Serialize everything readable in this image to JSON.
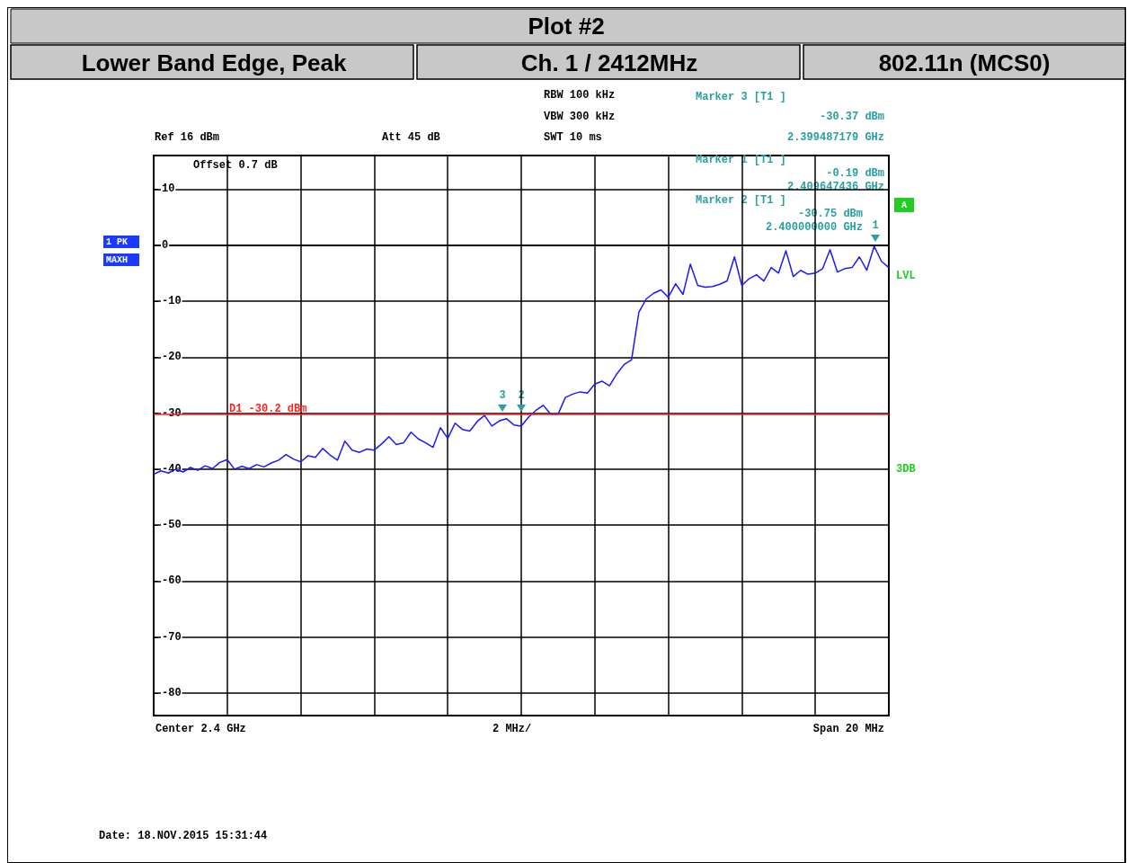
{
  "chart_data": {
    "type": "line",
    "title": "Plot #2",
    "categories": [
      null,
      null,
      null,
      null,
      null,
      null,
      null,
      null,
      null,
      null,
      null,
      null,
      null,
      null,
      null,
      null,
      null,
      null,
      null,
      null,
      null,
      null,
      null,
      null,
      null,
      null,
      null,
      null,
      null,
      null,
      null,
      null,
      null,
      null,
      null,
      null,
      null,
      null,
      null,
      null,
      null,
      null,
      null,
      null,
      null,
      null,
      null,
      null,
      null,
      null,
      null,
      null,
      null,
      null,
      null,
      null,
      null,
      null,
      null,
      null,
      null,
      null,
      null,
      null,
      null,
      null,
      null,
      null,
      null,
      null,
      null,
      null,
      null,
      null,
      null,
      null,
      null,
      null,
      null,
      null,
      null,
      null,
      null,
      null,
      null,
      null,
      null,
      null,
      null,
      null,
      null,
      null,
      null,
      null,
      null,
      null,
      null,
      null,
      null,
      null,
      null
    ],
    "values": [
      -40.9,
      -40.3,
      -40.7,
      -40.0,
      -40.5,
      -39.7,
      -40.2,
      -39.4,
      -39.9,
      -38.8,
      -38.3,
      -40.0,
      -39.5,
      -39.9,
      -39.2,
      -39.6,
      -38.9,
      -38.4,
      -37.4,
      -38.2,
      -38.7,
      -37.6,
      -37.9,
      -36.3,
      -37.5,
      -38.4,
      -35.0,
      -36.6,
      -37.0,
      -36.4,
      -36.6,
      -35.5,
      -34.2,
      -35.6,
      -35.3,
      -33.4,
      -34.6,
      -35.3,
      -36.1,
      -32.6,
      -34.5,
      -31.8,
      -32.9,
      -33.2,
      -31.5,
      -30.4,
      -32.3,
      -31.4,
      -31.0,
      -32.1,
      -32.3,
      -30.7,
      -29.5,
      -28.6,
      -30.2,
      -30.2,
      -27.2,
      -26.6,
      -26.2,
      -26.4,
      -24.8,
      -24.3,
      -25.1,
      -23.0,
      -21.3,
      -20.5,
      -12.0,
      -9.6,
      -8.6,
      -8.0,
      -9.3,
      -6.9,
      -8.8,
      -3.4,
      -7.2,
      -7.5,
      -7.4,
      -7.0,
      -6.4,
      -2.1,
      -7.2,
      -6.0,
      -5.3,
      -6.4,
      -4.0,
      -5.0,
      -1.0,
      -5.6,
      -4.5,
      -5.2,
      -5.0,
      -4.2,
      -0.8,
      -4.8,
      -4.2,
      -4.0,
      -2.1,
      -4.5,
      -0.2,
      -2.9,
      -4.0
    ],
    "color": "#1a1aff",
    "line_style": "solid",
    "ylim": [
      -84,
      16
    ],
    "yticks": [
      10,
      0,
      -10,
      -20,
      -30,
      -40,
      -50,
      -60,
      -70,
      -80
    ],
    "tick_labels": "y",
    "grid": true,
    "ref_lines": [
      {
        "axis": "y",
        "value": -30.2,
        "label": "D1 -30.2 dBm",
        "color": "#ff2020"
      }
    ],
    "annotations": [
      "Lower Band Edge, Peak",
      "Ch. 1 / 2412MHz",
      "802.11n (MCS0)",
      "Ref 16 dBm",
      "Att 45 dB",
      "RBW 100 kHz",
      "VBW 300 kHz",
      "SWT 10 ms",
      "Offset 0.7 dB",
      "Marker 3 [T1 ]",
      "-30.37 dBm",
      "2.399487179 GHz",
      "Marker 1 [T1 ]",
      "-0.19 dBm",
      "2.409647436 GHz",
      "Marker 2 [T1 ]",
      "-30.75 dBm",
      "2.400000000 GHz",
      "1 PK",
      "MAXH",
      "A",
      "LVL",
      "3DB",
      "Center 2.4 GHz",
      "2 MHz/",
      "Span 20 MHz",
      "Date: 18.NOV.2015 15:31:44",
      "3",
      "2",
      "1"
    ]
  }
}
